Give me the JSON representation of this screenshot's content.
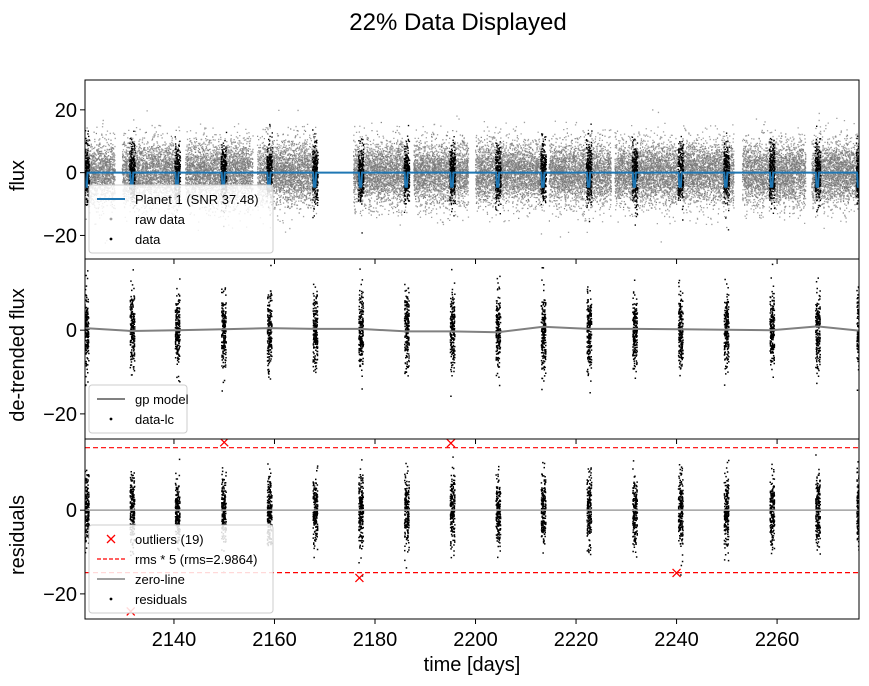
{
  "suptitle": "22% Data Displayed",
  "chart_data": [
    {
      "type": "scatter",
      "panel": "flux",
      "ylabel": "flux",
      "ylim": [
        -27.5,
        29.5
      ],
      "yticks": [
        20,
        0,
        -20
      ],
      "xlim": [
        2122.3,
        2276.3
      ],
      "legend": {
        "placement": "lower-left",
        "entries": [
          {
            "label": "Planet 1 (SNR 37.48)",
            "marker": "line",
            "color": "#1f77b4"
          },
          {
            "label": "raw data",
            "marker": "dot",
            "color": "#a0a0a0"
          },
          {
            "label": "data",
            "marker": "dot",
            "color": "#000000"
          }
        ]
      },
      "series": [
        {
          "name": "Planet 1 (SNR 37.48)",
          "type": "line",
          "color": "#1f77b4",
          "baseline": 0,
          "transit_depth": -4.5
        },
        {
          "name": "raw data",
          "type": "scatter",
          "color": "#a0a0a0",
          "spread": 9
        },
        {
          "name": "data",
          "type": "scatter",
          "color": "#000000",
          "spread": 9
        }
      ],
      "data_segments": [
        [
          2122.3,
          2128.2
        ],
        [
          2129.6,
          2141.1
        ],
        [
          2142.2,
          2155.6
        ],
        [
          2156.5,
          2168.4
        ],
        [
          2175.6,
          2186.3
        ],
        [
          2187.6,
          2198.5
        ],
        [
          2199.9,
          2213.6
        ],
        [
          2214.5,
          2226.9
        ],
        [
          2227.6,
          2240.1
        ],
        [
          2241.1,
          2251.3
        ],
        [
          2253.0,
          2265.6
        ],
        [
          2266.8,
          2276.3
        ]
      ],
      "transits": [
        2122.5,
        2131.6,
        2140.6,
        2149.8,
        2158.9,
        2168.0,
        2177.1,
        2186.2,
        2195.3,
        2204.4,
        2213.4,
        2222.5,
        2231.6,
        2240.7,
        2249.8,
        2258.9,
        2268.0,
        2276.2
      ]
    },
    {
      "type": "scatter",
      "panel": "detrended",
      "ylabel": "de-trended flux",
      "ylim": [
        -26,
        17
      ],
      "yticks": [
        0,
        -20
      ],
      "xlim": [
        2122.3,
        2276.3
      ],
      "legend": {
        "placement": "lower-left",
        "entries": [
          {
            "label": "gp model",
            "marker": "line",
            "color": "#808080"
          },
          {
            "label": "data-lc",
            "marker": "dot",
            "color": "#000000"
          }
        ]
      },
      "series": [
        {
          "name": "gp model",
          "type": "line",
          "color": "#808080",
          "x": [
            2122.3,
            2131.6,
            2140.6,
            2149.8,
            2158.9,
            2168.0,
            2177.1,
            2186.2,
            2195.3,
            2204.4,
            2213.4,
            2222.5,
            2231.6,
            2240.7,
            2249.8,
            2258.9,
            2268.0,
            2276.3
          ],
          "y": [
            0.5,
            -0.2,
            0,
            0.2,
            0.5,
            0.3,
            0.3,
            -0.3,
            -0.3,
            -0.5,
            0.8,
            0.3,
            0.3,
            0.2,
            0.1,
            0.0,
            0.9,
            -0.1
          ]
        },
        {
          "name": "data-lc",
          "type": "scatter",
          "color": "#000000",
          "spread": 8
        }
      ]
    },
    {
      "type": "scatter",
      "panel": "residuals",
      "ylabel": "residuals",
      "xlabel": "time [days]",
      "ylim": [
        -26,
        17
      ],
      "yticks": [
        0,
        -20
      ],
      "xlim": [
        2122.3,
        2276.3
      ],
      "xticks": [
        2140,
        2160,
        2180,
        2200,
        2220,
        2240,
        2260
      ],
      "legend": {
        "placement": "lower-left",
        "entries": [
          {
            "label": "outliers (19)",
            "marker": "x",
            "color": "#ff0000"
          },
          {
            "label": "rms * 5 (rms=2.9864)",
            "marker": "dashed",
            "color": "#ff0000"
          },
          {
            "label": "zero-line",
            "marker": "line",
            "color": "#a0a0a0"
          },
          {
            "label": "residuals",
            "marker": "dot",
            "color": "#000000"
          }
        ]
      },
      "series": [
        {
          "name": "outliers (19)",
          "type": "scatter",
          "marker": "x",
          "color": "#ff0000",
          "x": [
            2150.0,
            2195.1,
            2176.9,
            2240.0,
            2131.4
          ],
          "y": [
            16.2,
            16.0,
            -16.2,
            -15.0,
            -24.2
          ]
        },
        {
          "name": "rms * 5 (rms=2.9864)",
          "type": "hline",
          "color": "#ff0000",
          "y": [
            14.93,
            -14.93
          ]
        },
        {
          "name": "zero-line",
          "type": "hline",
          "color": "#a0a0a0",
          "y": [
            0
          ]
        },
        {
          "name": "residuals",
          "type": "scatter",
          "color": "#000000",
          "spread": 7
        }
      ]
    }
  ]
}
